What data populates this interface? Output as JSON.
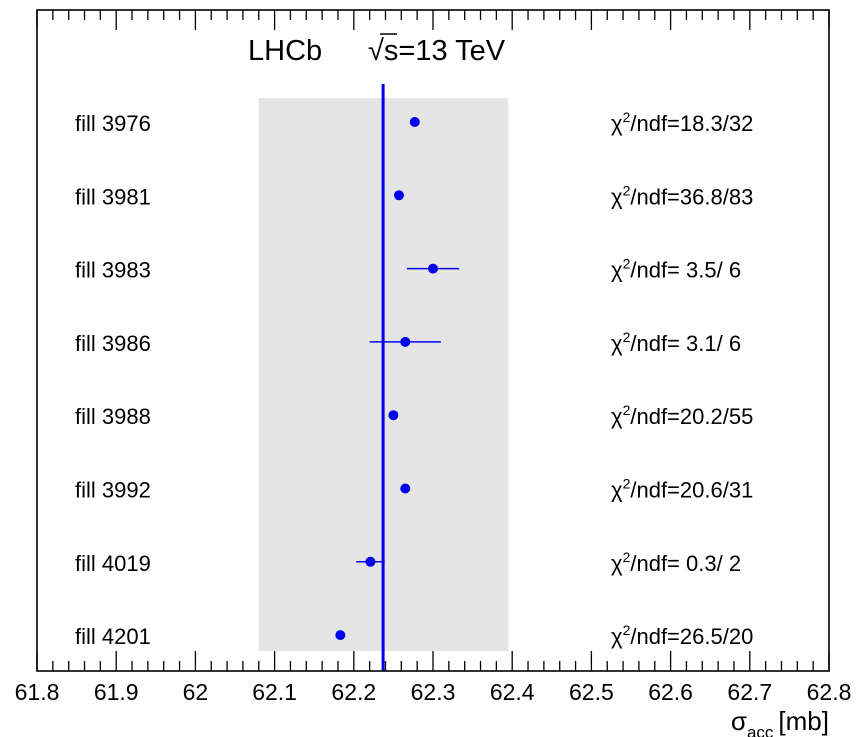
{
  "chart_data": {
    "type": "scatter",
    "title_experiment": "LHCb",
    "title_energy": "√s=13 TeV",
    "xlabel_symbol": "σ",
    "xlabel_subscript": "acc",
    "xlabel_unit": "[mb]",
    "xlim": [
      61.8,
      62.8
    ],
    "x_ticks": [
      "61.8",
      "61.9",
      "62",
      "62.1",
      "62.2",
      "62.3",
      "62.4",
      "62.5",
      "62.6",
      "62.7",
      "62.8"
    ],
    "band": {
      "xmin": 62.08,
      "xmax": 62.395,
      "color": "#e5e5e5"
    },
    "mean_line": {
      "x": 62.237,
      "color": "#0000ee"
    },
    "marker_color": "#0000ee",
    "chi2_prefix": "χ",
    "chi2_power": "2",
    "points": [
      {
        "label": "fill 3976",
        "x": 62.277,
        "err": 0.0,
        "chi2": "/ndf=18.3/32"
      },
      {
        "label": "fill 3981",
        "x": 62.257,
        "err": 0.0,
        "chi2": "/ndf=36.8/83"
      },
      {
        "label": "fill 3983",
        "x": 62.3,
        "err": 0.033,
        "chi2": "/ndf= 3.5/ 6"
      },
      {
        "label": "fill 3986",
        "x": 62.265,
        "err": 0.045,
        "chi2": "/ndf= 3.1/ 6"
      },
      {
        "label": "fill 3988",
        "x": 62.25,
        "err": 0.0,
        "chi2": "/ndf=20.2/55"
      },
      {
        "label": "fill 3992",
        "x": 62.265,
        "err": 0.0,
        "chi2": "/ndf=20.6/31"
      },
      {
        "label": "fill 4019",
        "x": 62.221,
        "err": 0.018,
        "chi2": "/ndf= 0.3/ 2"
      },
      {
        "label": "fill 4201",
        "x": 62.183,
        "err": 0.0,
        "chi2": "/ndf=26.5/20"
      }
    ]
  }
}
